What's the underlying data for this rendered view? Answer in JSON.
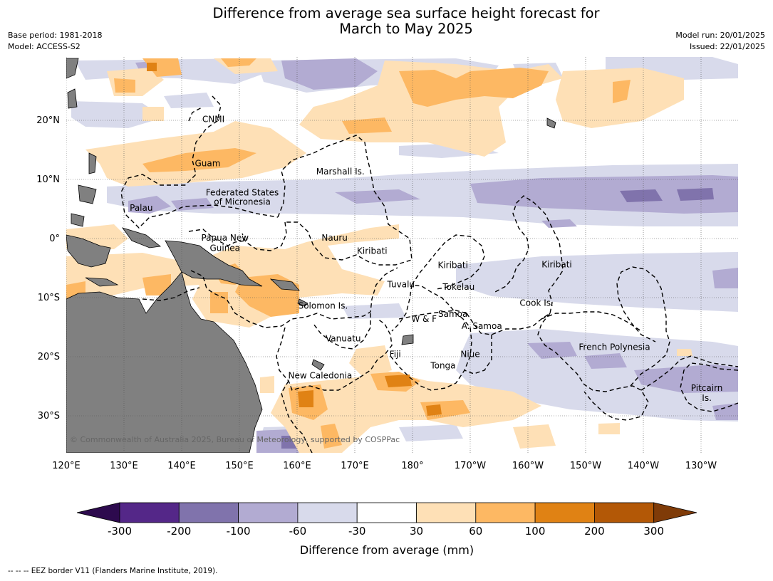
{
  "title_line1": "Difference from average sea surface height forecast for",
  "title_line2": "March to May 2025",
  "meta_left": [
    "Base period: 1981-2018",
    "Model: ACCESS-S2"
  ],
  "meta_right": [
    "Model run: 20/01/2025",
    "Issued: 22/01/2025"
  ],
  "lat_labels": [
    {
      "text": "20°N",
      "lat": 20
    },
    {
      "text": "10°N",
      "lat": 10
    },
    {
      "text": "0°",
      "lat": 0
    },
    {
      "text": "10°S",
      "lat": -10
    },
    {
      "text": "20°S",
      "lat": -20
    },
    {
      "text": "30°S",
      "lat": -30
    }
  ],
  "lon_labels": [
    {
      "text": "120°E",
      "lon": 120
    },
    {
      "text": "130°E",
      "lon": 130
    },
    {
      "text": "140°E",
      "lon": 140
    },
    {
      "text": "150°E",
      "lon": 150
    },
    {
      "text": "160°E",
      "lon": 160
    },
    {
      "text": "170°E",
      "lon": 170
    },
    {
      "text": "180°",
      "lon": 180
    },
    {
      "text": "170°W",
      "lon": 190
    },
    {
      "text": "160°W",
      "lon": 200
    },
    {
      "text": "150°W",
      "lon": 210
    },
    {
      "text": "140°W",
      "lon": 220
    },
    {
      "text": "130°W",
      "lon": 230
    }
  ],
  "regions": [
    {
      "name": "CNMI",
      "lon": 145.5,
      "lat": 20.2
    },
    {
      "name": "Guam",
      "lon": 144.5,
      "lat": 12.7
    },
    {
      "name": "Marshall Is.",
      "lon": 167.5,
      "lat": 11.3
    },
    {
      "name": "Federated States",
      "lon": 150.5,
      "lat": 7.8
    },
    {
      "name": "of Micronesia",
      "lon": 150.5,
      "lat": 6.2
    },
    {
      "name": "Palau",
      "lon": 133,
      "lat": 5.2
    },
    {
      "name": "Papua New",
      "lon": 147.5,
      "lat": 0.1
    },
    {
      "name": "Guinea",
      "lon": 147.5,
      "lat": -1.6
    },
    {
      "name": "Nauru",
      "lon": 166.5,
      "lat": 0.1
    },
    {
      "name": "Kiribati",
      "lon": 173,
      "lat": -2.1
    },
    {
      "name": "Kiribati",
      "lon": 187,
      "lat": -4.5
    },
    {
      "name": "Kiribati",
      "lon": 205,
      "lat": -4.4
    },
    {
      "name": "Tuvalu",
      "lon": 178,
      "lat": -7.8
    },
    {
      "name": "Tokelau",
      "lon": 188,
      "lat": -8.2
    },
    {
      "name": "Cook Is.",
      "lon": 201.5,
      "lat": -10.9
    },
    {
      "name": "Solomon Is.",
      "lon": 164.5,
      "lat": -11.4
    },
    {
      "name": "W & F",
      "lon": 182,
      "lat": -13.6
    },
    {
      "name": "Samoa",
      "lon": 187,
      "lat": -12.8
    },
    {
      "name": "A. Samoa",
      "lon": 192,
      "lat": -14.8
    },
    {
      "name": "Vanuatu",
      "lon": 168,
      "lat": -16.9
    },
    {
      "name": "Fiji",
      "lon": 177,
      "lat": -19.6
    },
    {
      "name": "Niue",
      "lon": 190,
      "lat": -19.6
    },
    {
      "name": "Tonga",
      "lon": 185.3,
      "lat": -21.5
    },
    {
      "name": "French Polynesia",
      "lon": 215,
      "lat": -18.4
    },
    {
      "name": "New Caledonia",
      "lon": 164,
      "lat": -23.2
    },
    {
      "name": "Pitcairn",
      "lon": 231,
      "lat": -25.3
    },
    {
      "name": "Is.",
      "lon": 231,
      "lat": -27.0
    }
  ],
  "copyright": "© Commonwealth of Australia 2025, Bureau of Meteorology, supported by COSPPac",
  "colorbar": {
    "label": "Difference from average (mm)",
    "ticks": [
      "-300",
      "-200",
      "-100",
      "-60",
      "-30",
      "30",
      "60",
      "100",
      "200",
      "300"
    ],
    "colors": [
      "#2d0a4e",
      "#542788",
      "#8073ac",
      "#b2abd2",
      "#d8daeb",
      "#ffffff",
      "#fee0b6",
      "#fdb863",
      "#e08214",
      "#b35806",
      "#7f3b08"
    ]
  },
  "footnote": "--  --  -- EEZ border V11 (Flanders Marine Institute, 2019)."
}
